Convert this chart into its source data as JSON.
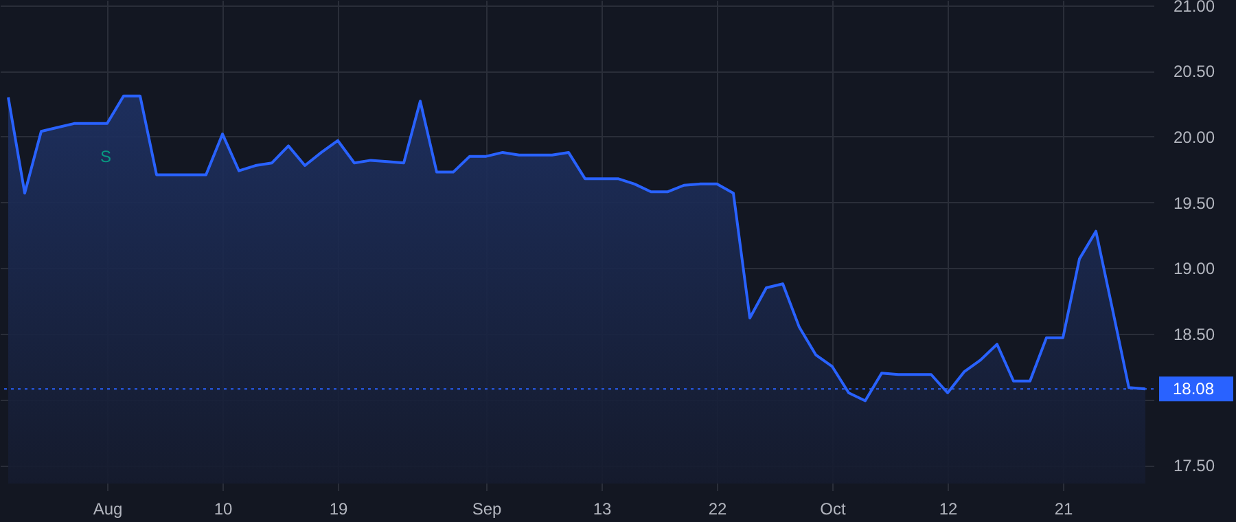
{
  "chart_data": {
    "type": "area",
    "categories": [
      null,
      null,
      null,
      null,
      null,
      null,
      "Aug",
      null,
      null,
      null,
      null,
      null,
      null,
      "10",
      null,
      null,
      null,
      null,
      null,
      null,
      "19",
      null,
      null,
      null,
      null,
      null,
      null,
      null,
      null,
      "Sep",
      null,
      null,
      null,
      null,
      null,
      null,
      "13",
      null,
      null,
      null,
      null,
      null,
      null,
      "22",
      null,
      null,
      null,
      null,
      null,
      null,
      "Oct",
      null,
      null,
      null,
      null,
      null,
      null,
      "12",
      null,
      null,
      null,
      null,
      null,
      null,
      "21",
      null,
      null,
      null,
      null,
      null
    ],
    "series": [
      {
        "color": "#2962ff",
        "values": [
          20.3,
          19.57,
          20.04,
          20.07,
          20.1,
          20.1,
          20.1,
          20.31,
          20.31,
          19.71,
          19.71,
          19.71,
          19.71,
          20.02,
          19.74,
          19.78,
          19.8,
          19.93,
          19.78,
          19.88,
          19.97,
          19.8,
          19.82,
          19.81,
          19.8,
          20.27,
          19.73,
          19.73,
          19.85,
          19.85,
          19.88,
          19.86,
          19.86,
          19.86,
          19.88,
          19.68,
          19.68,
          19.68,
          19.64,
          19.58,
          19.58,
          19.63,
          19.64,
          19.64,
          19.57,
          18.62,
          18.85,
          18.88,
          18.55,
          18.34,
          18.25,
          18.05,
          17.99,
          18.2,
          18.19,
          18.19,
          18.19,
          18.05,
          18.21,
          18.3,
          18.42,
          18.14,
          18.14,
          18.47,
          18.47,
          19.07,
          19.28,
          18.69,
          18.09,
          18.08
        ]
      }
    ],
    "ylim": [
      17.36,
      21.04
    ],
    "yticks": [
      {
        "value": 17.5,
        "label": "17.50"
      },
      {
        "value": 18.0,
        "label": null
      },
      {
        "value": 18.5,
        "label": "18.50"
      },
      {
        "value": 19.0,
        "label": "19.00"
      },
      {
        "value": 19.5,
        "label": "19.50"
      },
      {
        "value": 20.0,
        "label": "20.00"
      },
      {
        "value": 20.5,
        "label": "20.50"
      },
      {
        "value": 21.0,
        "label": "21.00"
      }
    ],
    "grid": true,
    "ref_lines": [
      {
        "axis": "y",
        "value": 18.08,
        "label": "18.08",
        "color": "#2962ff",
        "line_style": "dotted"
      }
    ],
    "annotations": [
      "S"
    ]
  }
}
